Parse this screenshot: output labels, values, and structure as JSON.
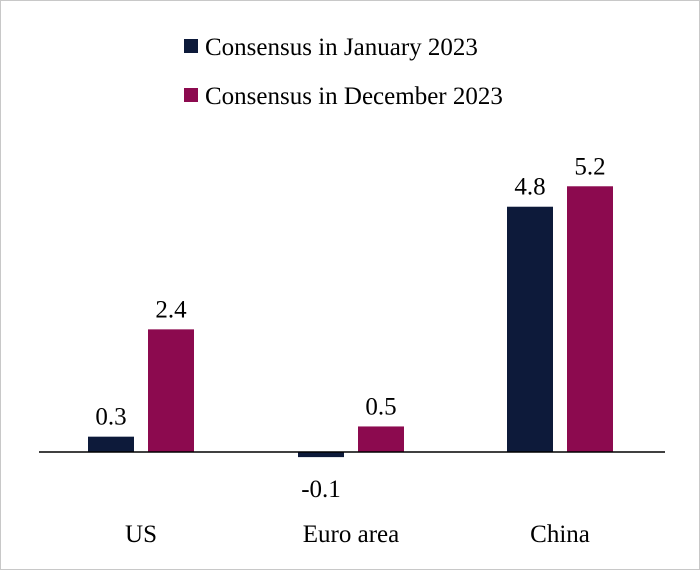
{
  "chart_data": {
    "type": "bar",
    "categories": [
      "US",
      "Euro area",
      "China"
    ],
    "series": [
      {
        "name": "Consensus in January 2023",
        "values": [
          0.3,
          -0.1,
          4.8
        ],
        "color": "#0d1a3a"
      },
      {
        "name": "Consensus in December 2023",
        "values": [
          2.4,
          0.5,
          5.2
        ],
        "color": "#8c0a4f"
      }
    ],
    "data_labels": [
      [
        "0.3",
        "-0.1",
        "4.8"
      ],
      [
        "2.4",
        "0.5",
        "5.2"
      ]
    ],
    "title": "",
    "xlabel": "",
    "ylabel": "",
    "legend_position": "top",
    "grid": false,
    "ylim": [
      -0.1,
      5.2
    ]
  }
}
